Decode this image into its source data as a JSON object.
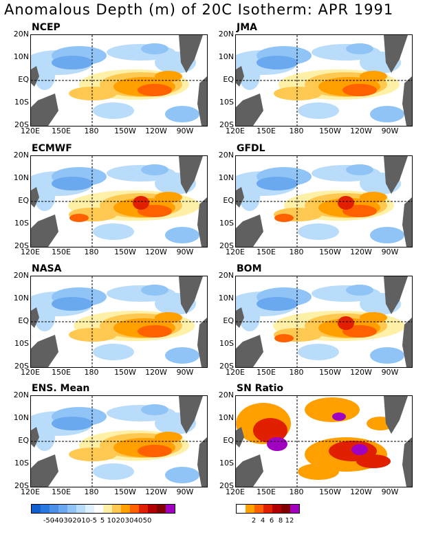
{
  "title": "Anomalous Depth (m) of 20C Isotherm: APR 1991",
  "lat_labels": [
    "20N",
    "10N",
    "EQ",
    "10S",
    "20S"
  ],
  "lon_labels": [
    "120E",
    "150E",
    "180",
    "150W",
    "120W",
    "90W"
  ],
  "panels": [
    {
      "label": "NCEP"
    },
    {
      "label": "JMA"
    },
    {
      "label": "ECMWF"
    },
    {
      "label": "GFDL"
    },
    {
      "label": "NASA"
    },
    {
      "label": "BOM"
    },
    {
      "label": "ENS. Mean"
    },
    {
      "label": "SN Ratio"
    }
  ],
  "legend_depth": {
    "colors": [
      "#1060d0",
      "#2878e0",
      "#4a90e8",
      "#6aa8f0",
      "#90c4f6",
      "#b8dcfa",
      "#e0f0fc",
      "#ffffff",
      "#fff0a8",
      "#ffc850",
      "#ffa000",
      "#ff6000",
      "#e02000",
      "#b00000",
      "#800000",
      "#a000c0"
    ],
    "labels": [
      "-50",
      "-40",
      "-30",
      "-20",
      "-10",
      "-5",
      "5",
      "10",
      "20",
      "30",
      "40",
      "50"
    ]
  },
  "legend_sn": {
    "colors": [
      "#ffffff",
      "#ffa000",
      "#ff6000",
      "#e02000",
      "#b00000",
      "#800000",
      "#a000c0"
    ],
    "labels": [
      "2",
      "4",
      "6",
      "8",
      "12"
    ]
  }
}
